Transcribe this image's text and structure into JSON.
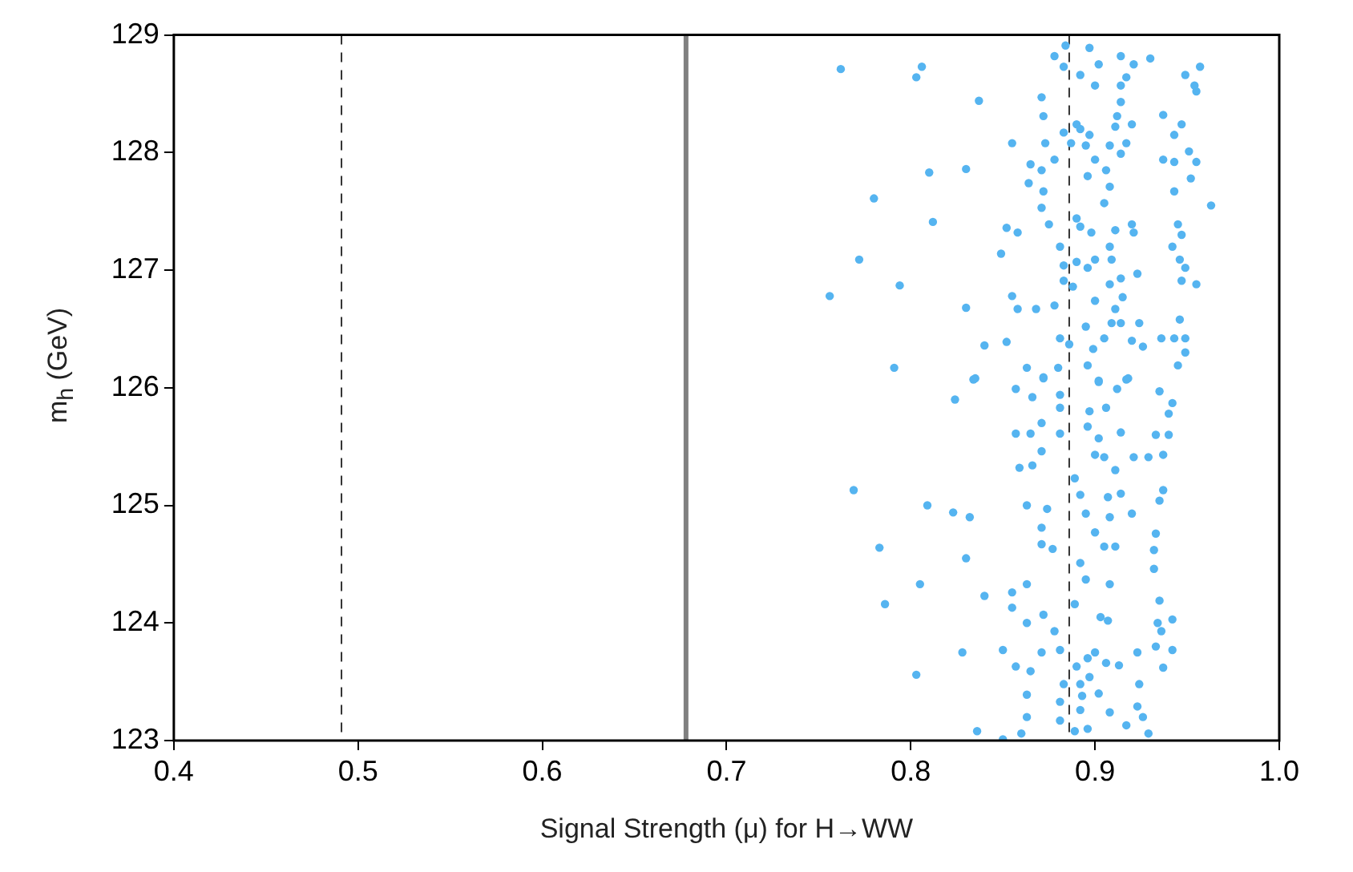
{
  "chart_data": {
    "type": "scatter",
    "xlabel": "Signal Strength (μ) for H→WW",
    "ylabel": "m$_{h}$ (GeV)",
    "xlim": [
      0.4,
      1.0
    ],
    "xticks": [
      0.4,
      0.5,
      0.6,
      0.7,
      0.8,
      0.9,
      {
        "value": 1.0,
        "label": "1.0"
      }
    ],
    "ylim": [
      123,
      129
    ],
    "yticks": [
      123,
      124,
      125,
      126,
      127,
      128,
      129
    ],
    "grid": false,
    "legend": false,
    "marker": "circle",
    "ref_lines": [
      {
        "axis": "x",
        "value": 0.491,
        "color": "#333333",
        "line_style": "dashed"
      },
      {
        "axis": "x",
        "value": 0.678,
        "color": "#808080",
        "line_style": "solid"
      },
      {
        "axis": "x",
        "value": 0.886,
        "color": "#333333",
        "line_style": "dashed"
      }
    ],
    "series": [
      {
        "color": "#55b4f0",
        "x": [
          0.762,
          0.806,
          0.803,
          0.837,
          0.871,
          0.872,
          0.855,
          0.873,
          0.81,
          0.83,
          0.78,
          0.812,
          0.772,
          0.794,
          0.756,
          0.83,
          0.791,
          0.834,
          0.84,
          0.852,
          0.849,
          0.852,
          0.858,
          0.855,
          0.858,
          0.868,
          0.878,
          0.865,
          0.871,
          0.864,
          0.872,
          0.871,
          0.875,
          0.881,
          0.883,
          0.883,
          0.888,
          0.878,
          0.883,
          0.89,
          0.897,
          0.887,
          0.895,
          0.9,
          0.896,
          0.906,
          0.908,
          0.914,
          0.917,
          0.911,
          0.92,
          0.908,
          0.905,
          0.89,
          0.892,
          0.898,
          0.911,
          0.921,
          0.908,
          0.909,
          0.9,
          0.896,
          0.89,
          0.914,
          0.923,
          0.908,
          0.915,
          0.9,
          0.911,
          0.895,
          0.909,
          0.914,
          0.924,
          0.881,
          0.886,
          0.899,
          0.905,
          0.92,
          0.926,
          0.896,
          0.88,
          0.872,
          0.863,
          0.902,
          0.917,
          0.936,
          0.946,
          0.949,
          0.949,
          0.945,
          0.945,
          0.947,
          0.942,
          0.946,
          0.949,
          0.947,
          0.955,
          0.943,
          0.952,
          0.955,
          0.943,
          0.951,
          0.937,
          0.943,
          0.947,
          0.937,
          0.943,
          0.963,
          0.955,
          0.957,
          0.949,
          0.954,
          0.93,
          0.921,
          0.914,
          0.902,
          0.892,
          0.883,
          0.884,
          0.878,
          0.897,
          0.917,
          0.914,
          0.9,
          0.914,
          0.912,
          0.92,
          0.892,
          0.835,
          0.824,
          0.857,
          0.866,
          0.881,
          0.881,
          0.872,
          0.897,
          0.906,
          0.902,
          0.918,
          0.912,
          0.935,
          0.942,
          0.94,
          0.857,
          0.865,
          0.871,
          0.881,
          0.896,
          0.902,
          0.914,
          0.871,
          0.859,
          0.866,
          0.9,
          0.905,
          0.911,
          0.921,
          0.929,
          0.937,
          0.933,
          0.94,
          0.769,
          0.809,
          0.823,
          0.832,
          0.863,
          0.874,
          0.871,
          0.871,
          0.877,
          0.889,
          0.892,
          0.895,
          0.907,
          0.914,
          0.908,
          0.92,
          0.9,
          0.905,
          0.911,
          0.935,
          0.937,
          0.933,
          0.932,
          0.932,
          0.783,
          0.83,
          0.805,
          0.786,
          0.84,
          0.855,
          0.855,
          0.863,
          0.863,
          0.872,
          0.878,
          0.892,
          0.895,
          0.889,
          0.908,
          0.935,
          0.934,
          0.942,
          0.936,
          0.933,
          0.942,
          0.923,
          0.937,
          0.828,
          0.85,
          0.871,
          0.881,
          0.857,
          0.865,
          0.803,
          0.89,
          0.896,
          0.9,
          0.897,
          0.906,
          0.913,
          0.907,
          0.903,
          0.892,
          0.893,
          0.883,
          0.863,
          0.881,
          0.902,
          0.924,
          0.863,
          0.881,
          0.892,
          0.908,
          0.917,
          0.923,
          0.926,
          0.929,
          0.836,
          0.85,
          0.86,
          0.889,
          0.896
        ],
        "values": [
          128.71,
          128.73,
          128.64,
          128.44,
          128.47,
          128.31,
          128.08,
          128.08,
          127.83,
          127.86,
          127.61,
          127.41,
          127.09,
          126.87,
          126.78,
          126.68,
          126.17,
          126.07,
          126.36,
          126.39,
          127.14,
          127.36,
          127.32,
          126.78,
          126.67,
          126.67,
          126.7,
          127.9,
          127.85,
          127.74,
          127.67,
          127.53,
          127.39,
          127.2,
          127.04,
          126.91,
          126.86,
          127.94,
          128.17,
          128.24,
          128.15,
          128.08,
          128.06,
          127.94,
          127.8,
          127.85,
          128.06,
          127.99,
          128.08,
          128.22,
          128.24,
          127.71,
          127.57,
          127.44,
          127.37,
          127.32,
          127.34,
          127.32,
          127.2,
          127.09,
          127.09,
          127.02,
          127.07,
          126.93,
          126.97,
          126.88,
          126.77,
          126.74,
          126.67,
          126.52,
          126.55,
          126.55,
          126.55,
          126.42,
          126.37,
          126.33,
          126.42,
          126.4,
          126.35,
          126.19,
          126.17,
          126.09,
          126.17,
          126.05,
          126.07,
          126.42,
          126.58,
          126.42,
          126.3,
          126.19,
          127.39,
          127.3,
          127.2,
          127.09,
          127.02,
          126.91,
          126.88,
          127.67,
          127.78,
          127.92,
          127.92,
          128.01,
          127.94,
          128.15,
          128.24,
          128.32,
          126.42,
          127.55,
          128.52,
          128.73,
          128.66,
          128.57,
          128.8,
          128.75,
          128.82,
          128.75,
          128.66,
          128.73,
          128.91,
          128.82,
          128.89,
          128.64,
          128.57,
          128.57,
          128.43,
          128.31,
          127.39,
          128.2,
          126.08,
          125.9,
          125.99,
          125.92,
          125.94,
          125.83,
          126.08,
          125.8,
          125.83,
          126.06,
          126.08,
          125.99,
          125.97,
          125.87,
          125.78,
          125.61,
          125.61,
          125.7,
          125.61,
          125.67,
          125.57,
          125.62,
          125.46,
          125.32,
          125.34,
          125.43,
          125.41,
          125.3,
          125.41,
          125.41,
          125.43,
          125.6,
          125.6,
          125.13,
          125.0,
          124.94,
          124.9,
          125.0,
          124.97,
          124.81,
          124.67,
          124.63,
          125.23,
          125.09,
          124.93,
          125.07,
          125.1,
          124.9,
          124.93,
          124.77,
          124.65,
          124.65,
          125.04,
          125.13,
          124.76,
          124.62,
          124.46,
          124.64,
          124.55,
          124.33,
          124.16,
          124.23,
          124.26,
          124.13,
          124.33,
          124.0,
          124.07,
          123.93,
          124.51,
          124.37,
          124.16,
          124.33,
          124.19,
          124.0,
          124.03,
          123.93,
          123.8,
          123.77,
          123.75,
          123.62,
          123.75,
          123.77,
          123.75,
          123.77,
          123.63,
          123.59,
          123.56,
          123.63,
          123.7,
          123.75,
          123.54,
          123.66,
          123.64,
          124.02,
          124.05,
          123.48,
          123.38,
          123.48,
          123.39,
          123.33,
          123.4,
          123.48,
          123.2,
          123.17,
          123.26,
          123.24,
          123.13,
          123.29,
          123.2,
          123.06,
          123.08,
          123.01,
          123.06,
          123.08,
          123.1
        ]
      }
    ]
  }
}
